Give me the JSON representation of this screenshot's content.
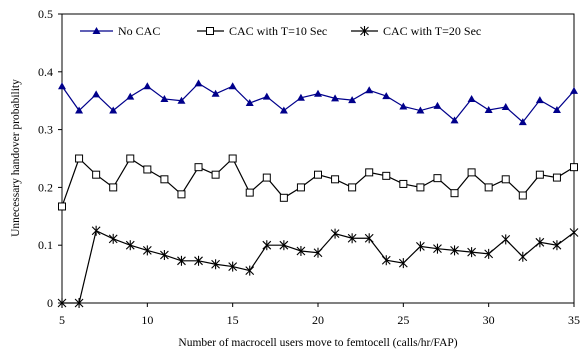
{
  "chart_data": {
    "type": "line",
    "title": "",
    "xlabel": "Number of macrocell users move to femtocell (calls/hr/FAP)",
    "ylabel": "Unnecessary handover probability",
    "xlim": [
      5,
      35
    ],
    "ylim": [
      0,
      0.5
    ],
    "xticks": [
      5,
      10,
      15,
      20,
      25,
      30,
      35
    ],
    "yticks": [
      0,
      0.1,
      0.2,
      0.3,
      0.4,
      0.5
    ],
    "ytick_labels": [
      "0",
      "0.1",
      "0.2",
      "0.3",
      "0.4",
      "0.5"
    ],
    "grid": false,
    "legend_position": "top",
    "x": [
      5,
      6,
      7,
      8,
      9,
      10,
      11,
      12,
      13,
      14,
      15,
      16,
      17,
      18,
      19,
      20,
      21,
      22,
      23,
      24,
      25,
      26,
      27,
      28,
      29,
      30,
      31,
      32,
      33,
      34,
      35
    ],
    "series": [
      {
        "name": "No CAC",
        "marker": "filled-triangle",
        "color": "#00008b",
        "values": [
          0.375,
          0.333,
          0.361,
          0.333,
          0.357,
          0.375,
          0.353,
          0.35,
          0.38,
          0.362,
          0.375,
          0.346,
          0.357,
          0.333,
          0.355,
          0.362,
          0.354,
          0.351,
          0.368,
          0.358,
          0.34,
          0.333,
          0.341,
          0.316,
          0.353,
          0.334,
          0.339,
          0.313,
          0.351,
          0.334,
          0.367
        ]
      },
      {
        "name": "CAC with T=10 Sec",
        "marker": "open-square",
        "color": "#000000",
        "values": [
          0.167,
          0.25,
          0.222,
          0.2,
          0.25,
          0.231,
          0.214,
          0.188,
          0.235,
          0.222,
          0.25,
          0.191,
          0.217,
          0.182,
          0.2,
          0.222,
          0.214,
          0.2,
          0.226,
          0.22,
          0.206,
          0.2,
          0.216,
          0.19,
          0.226,
          0.2,
          0.214,
          0.186,
          0.222,
          0.217,
          0.235
        ]
      },
      {
        "name": "CAC with T=20 Sec",
        "marker": "asterisk",
        "color": "#000000",
        "values": [
          0.0,
          0.0,
          0.125,
          0.111,
          0.1,
          0.091,
          0.083,
          0.073,
          0.073,
          0.067,
          0.063,
          0.056,
          0.1,
          0.1,
          0.09,
          0.087,
          0.12,
          0.112,
          0.112,
          0.074,
          0.069,
          0.098,
          0.094,
          0.091,
          0.088,
          0.085,
          0.11,
          0.08,
          0.105,
          0.1,
          0.122
        ]
      }
    ]
  }
}
